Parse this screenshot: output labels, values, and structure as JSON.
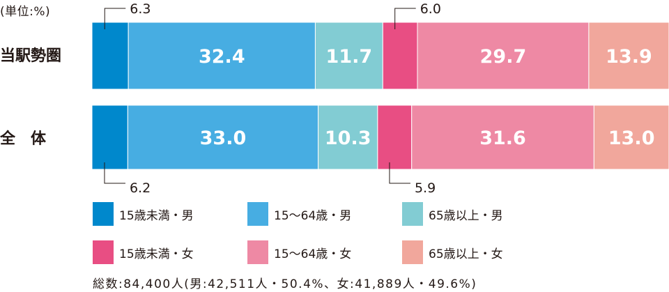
{
  "unit_label": "(単位:%)",
  "rows": [
    "当駅勢圏",
    "全　体"
  ],
  "colors": {
    "male_under15": "#0088cc",
    "male_15_64": "#47ade2",
    "male_65plus": "#82ccd3",
    "female_under15": "#e84e83",
    "female_15_64": "#ee89a4",
    "female_65plus": "#f1a79c"
  },
  "legend": [
    {
      "label": "15歳未満・男",
      "color": "#0088cc"
    },
    {
      "label": "15～64歳・男",
      "color": "#47ade2"
    },
    {
      "label": "65歳以上・男",
      "color": "#82ccd3"
    },
    {
      "label": "15歳未満・女",
      "color": "#e84e83"
    },
    {
      "label": "15～64歳・女",
      "color": "#ee89a4"
    },
    {
      "label": "65歳以上・女",
      "color": "#f1a79c"
    }
  ],
  "total_note": "総数:84,400人(男:42,511人・50.4%、女:41,889人・49.6%)",
  "chart_data": {
    "type": "bar",
    "orientation": "horizontal",
    "stacked": "100%",
    "categories": [
      "当駅勢圏",
      "全　体"
    ],
    "series": [
      {
        "name": "15歳未満・男",
        "values": [
          6.3,
          6.2
        ],
        "labels": [
          "6.3",
          "6.2"
        ]
      },
      {
        "name": "15～64歳・男",
        "values": [
          32.4,
          33.0
        ],
        "labels": [
          "32.4",
          "33.0"
        ]
      },
      {
        "name": "65歳以上・男",
        "values": [
          11.7,
          10.3
        ],
        "labels": [
          "11.7",
          "10.3"
        ]
      },
      {
        "name": "15歳未満・女",
        "values": [
          6.0,
          5.9
        ],
        "labels": [
          "6.0",
          "5.9"
        ]
      },
      {
        "name": "15～64歳・女",
        "values": [
          29.7,
          31.6
        ],
        "labels": [
          "29.7",
          "31.6"
        ]
      },
      {
        "name": "65歳以上・女",
        "values": [
          13.9,
          13.0
        ],
        "labels": [
          "13.9",
          "13.0"
        ]
      }
    ],
    "xlim": [
      0,
      100
    ],
    "legend_position": "bottom",
    "grid": false
  }
}
